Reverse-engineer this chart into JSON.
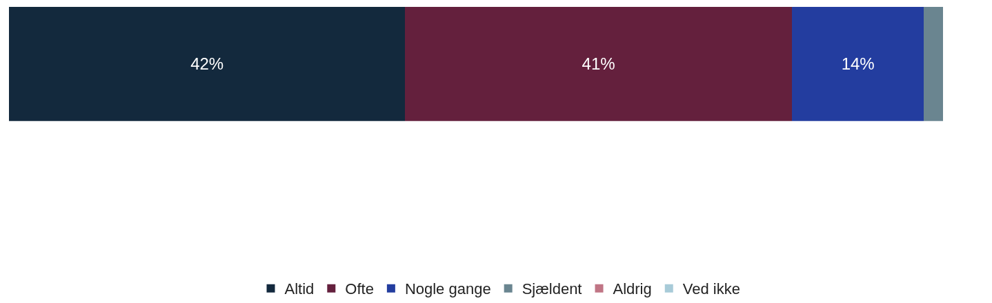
{
  "chart_data": {
    "type": "bar",
    "orientation": "horizontal",
    "stacked": true,
    "categories": [
      null
    ],
    "legend": "bottom",
    "grid": false,
    "tick_labels": false,
    "series": [
      {
        "name": "Altid",
        "color": "#13293d",
        "values": [
          42
        ],
        "value_labels": [
          "42%"
        ]
      },
      {
        "name": "Ofte",
        "color": "#64203d",
        "values": [
          41
        ],
        "value_labels": [
          "41%"
        ]
      },
      {
        "name": "Nogle gange",
        "color": "#233d9f",
        "values": [
          14
        ],
        "value_labels": [
          "14%"
        ]
      },
      {
        "name": "Sjældent",
        "color": "#6a8590",
        "values": [
          2
        ],
        "value_labels": [
          null
        ]
      },
      {
        "name": "Aldrig",
        "color": "#c07585",
        "values": [
          0
        ],
        "value_labels": [
          null
        ]
      },
      {
        "name": "Ved ikke",
        "color": "#a8cbd8",
        "values": [
          0
        ],
        "value_labels": [
          null
        ]
      }
    ]
  }
}
